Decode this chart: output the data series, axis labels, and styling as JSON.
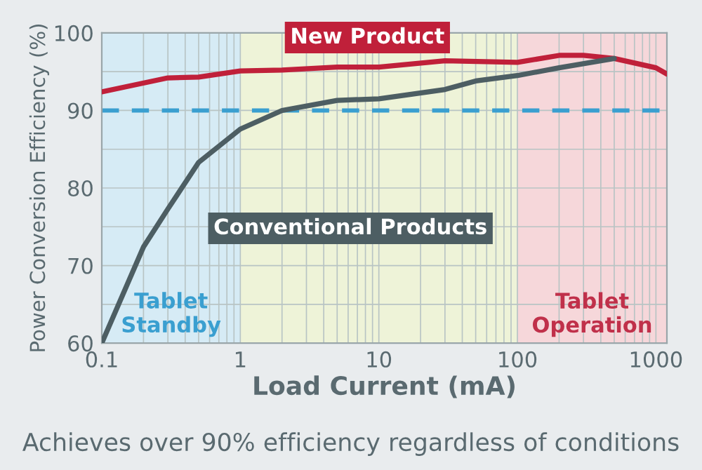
{
  "chart_data": {
    "type": "line",
    "xlabel": "Load Current (mA)",
    "ylabel": "Power Conversion Efficiency (%)",
    "series": [
      {
        "name": "New Product",
        "color": "#c0203a",
        "x": [
          0.1,
          0.3,
          0.5,
          1,
          2,
          5,
          10,
          30,
          100,
          200,
          300,
          500,
          1000,
          1200
        ],
        "values": [
          92.4,
          94.2,
          94.3,
          95.1,
          95.2,
          95.6,
          95.6,
          96.4,
          96.2,
          97.1,
          97.1,
          96.7,
          95.5,
          94.7
        ]
      },
      {
        "name": "Conventional Products",
        "color": "#4d5e63",
        "x": [
          0.1,
          0.2,
          0.3,
          0.5,
          1,
          2,
          5,
          10,
          30,
          50,
          100,
          200,
          500
        ],
        "values": [
          60,
          72.4,
          77.3,
          83.3,
          87.6,
          90,
          91.3,
          91.5,
          92.7,
          93.8,
          94.5,
          95.5,
          96.7
        ]
      }
    ],
    "log": "x",
    "xlim": [
      0.1,
      1200
    ],
    "ylim": [
      60,
      100
    ],
    "xticks": [
      0.1,
      1,
      10,
      100,
      1000
    ],
    "yticks": [
      60,
      70,
      80,
      90,
      100
    ],
    "grid": true,
    "legend": false,
    "ref_lines": [
      {
        "axis": "y",
        "value": 90,
        "color": "#3a9fd0",
        "line_style": "dashed"
      }
    ],
    "bands": [
      {
        "axis": "x",
        "from": 0.1,
        "to": 1,
        "label": "Tablet Standby",
        "color": "#d6ebf5"
      },
      {
        "axis": "x",
        "from": 1,
        "to": 100,
        "color": "#eef3d8"
      },
      {
        "axis": "x",
        "from": 100,
        "to": 1200,
        "label": "Tablet Operation",
        "color": "#f6d7da"
      }
    ],
    "annotations": [
      "Achieves over 90% efficiency regardless of conditions"
    ]
  }
}
